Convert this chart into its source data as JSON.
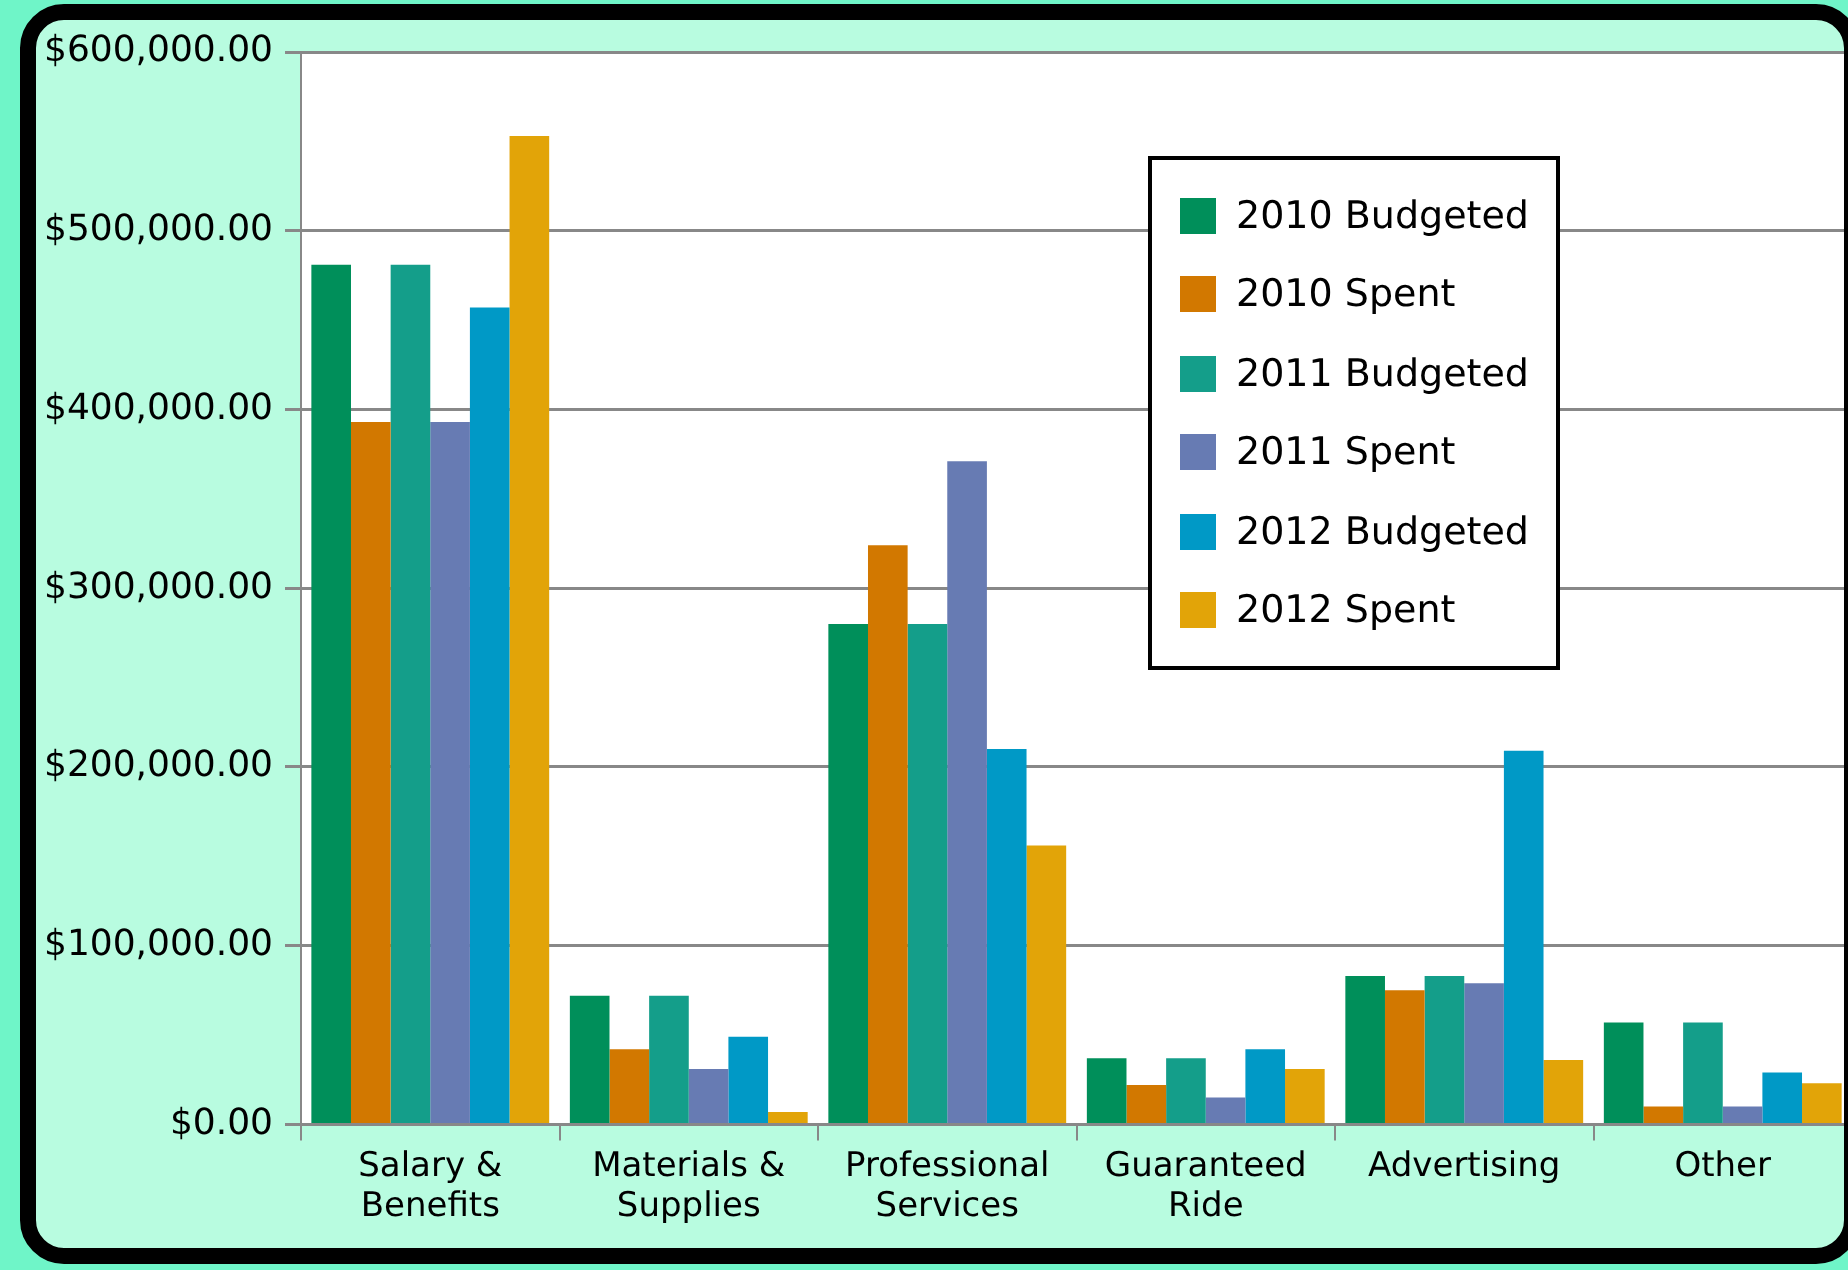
{
  "chart_data": {
    "type": "bar",
    "categories": [
      "Salary & Benefits",
      "Materials & Supplies",
      "Professional Services",
      "Guaranteed Ride",
      "Advertising",
      "Other"
    ],
    "series": [
      {
        "name": "2010 Budgeted",
        "color": "#008f5a",
        "values": [
          481000,
          72000,
          280000,
          37000,
          83000,
          57000
        ]
      },
      {
        "name": "2010 Spent",
        "color": "#d27800",
        "values": [
          393000,
          42000,
          324000,
          22000,
          75000,
          10000
        ]
      },
      {
        "name": "2011 Budgeted",
        "color": "#149e8a",
        "values": [
          481000,
          72000,
          280000,
          37000,
          83000,
          57000
        ]
      },
      {
        "name": "2011 Spent",
        "color": "#677bb3",
        "values": [
          393000,
          31000,
          371000,
          15000,
          79000,
          10000
        ]
      },
      {
        "name": "2012 Budgeted",
        "color": "#0099c6",
        "values": [
          457000,
          49000,
          210000,
          42000,
          209000,
          29000
        ]
      },
      {
        "name": "2012 Spent",
        "color": "#e2a408",
        "values": [
          553000,
          7000,
          156000,
          31000,
          36000,
          23000
        ]
      }
    ],
    "ylim": [
      0,
      600000
    ],
    "yticks": [
      {
        "value": 0,
        "label": "$0.00"
      },
      {
        "value": 100000,
        "label": "$100,000.00"
      },
      {
        "value": 200000,
        "label": "$200,000.00"
      },
      {
        "value": 300000,
        "label": "$300,000.00"
      },
      {
        "value": 400000,
        "label": "$400,000.00"
      },
      {
        "value": 500000,
        "label": "$500,000.00"
      },
      {
        "value": 600000,
        "label": "$600,000.00"
      }
    ],
    "grid": "y",
    "legend": "top right"
  }
}
